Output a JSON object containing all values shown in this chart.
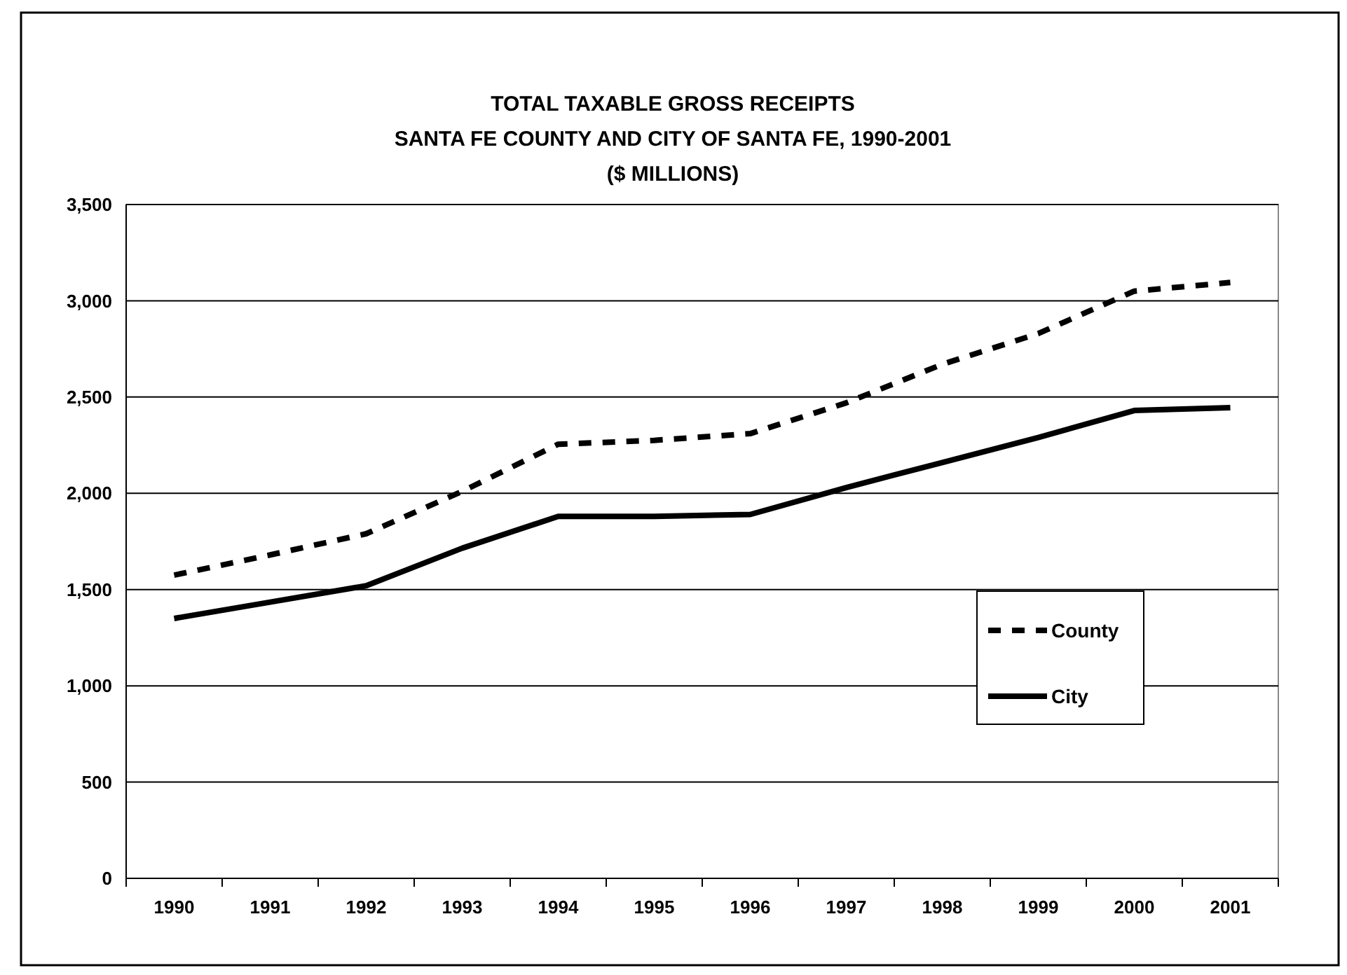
{
  "chart_data": {
    "type": "line",
    "title": "TOTAL TAXABLE GROSS RECEIPTS",
    "subtitle": "SANTA FE COUNTY AND CITY OF SANTA FE, 1990-2001\n($ MILLIONS)",
    "categories": [
      "1990",
      "1991",
      "1992",
      "1993",
      "1994",
      "1995",
      "1996",
      "1997",
      "1998",
      "1999",
      "2000",
      "2001"
    ],
    "series": [
      {
        "name": "County",
        "color": "#000000",
        "line_style": "dashed",
        "values": [
          1575,
          1680,
          1790,
          2010,
          2255,
          2275,
          2310,
          2470,
          2670,
          2830,
          3050,
          3095
        ]
      },
      {
        "name": "City",
        "color": "#000000",
        "line_style": "solid",
        "values": [
          1350,
          1435,
          1520,
          1715,
          1880,
          1880,
          1890,
          2030,
          2160,
          2290,
          2430,
          2445
        ]
      }
    ],
    "ylim": [
      0,
      3500
    ],
    "yticks": [
      {
        "value": 0,
        "label": "0"
      },
      {
        "value": 500,
        "label": "500"
      },
      {
        "value": 1000,
        "label": "1,000"
      },
      {
        "value": 1500,
        "label": "1,500"
      },
      {
        "value": 2000,
        "label": "2,000"
      },
      {
        "value": 2500,
        "label": "2,500"
      },
      {
        "value": 3000,
        "label": "3,000"
      },
      {
        "value": 3500,
        "label": "3,500"
      }
    ],
    "grid": "y",
    "legend": "right",
    "marker": "none"
  }
}
